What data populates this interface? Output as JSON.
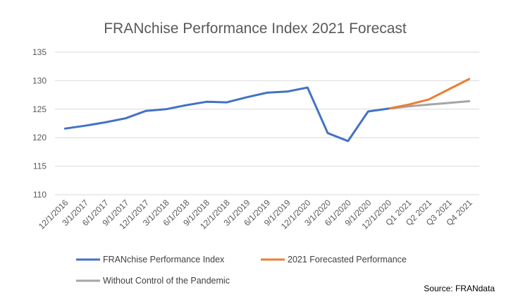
{
  "chart_data": {
    "type": "line",
    "title": "FRANchise Performance Index 2021 Forecast",
    "xlabel": "",
    "ylabel": "",
    "ylim": [
      110,
      135
    ],
    "yticks": [
      110,
      115,
      120,
      125,
      130,
      135
    ],
    "grid": true,
    "legend_position": "bottom",
    "categories": [
      "12/1/2016",
      "3/1/2017",
      "6/1/2017",
      "9/1/2017",
      "12/1/2017",
      "3/1/2018",
      "6/1/2018",
      "9/1/2018",
      "12/1/2018",
      "3/1/2019",
      "6/1/2019",
      "9/1/2019",
      "12/1/2020",
      "3/1/2020",
      "6/1/2020",
      "9/1/2020",
      "12/1/2020",
      "Q1 2021",
      "Q2 2021",
      "Q3 2021",
      "Q4 2021"
    ],
    "series": [
      {
        "name": "FRANchise Performance Index",
        "color": "#4472C4",
        "values": [
          121.6,
          122.1,
          122.7,
          123.4,
          124.7,
          125.0,
          125.7,
          126.3,
          126.2,
          127.1,
          127.9,
          128.1,
          128.8,
          120.8,
          119.4,
          124.6,
          125.1,
          null,
          null,
          null,
          null
        ]
      },
      {
        "name": "2021 Forecasted Performance",
        "color": "#ED7D31",
        "values": [
          null,
          null,
          null,
          null,
          null,
          null,
          null,
          null,
          null,
          null,
          null,
          null,
          null,
          null,
          null,
          null,
          125.1,
          125.8,
          126.7,
          128.5,
          130.3
        ]
      },
      {
        "name": "Without Control of the Pandemic",
        "color": "#A5A5A5",
        "values": [
          null,
          null,
          null,
          null,
          null,
          null,
          null,
          null,
          null,
          null,
          null,
          null,
          null,
          null,
          null,
          null,
          125.1,
          125.5,
          125.8,
          126.1,
          126.4
        ]
      }
    ],
    "legend_order": [
      0,
      1,
      2
    ],
    "source": "Source: FRANdata"
  }
}
